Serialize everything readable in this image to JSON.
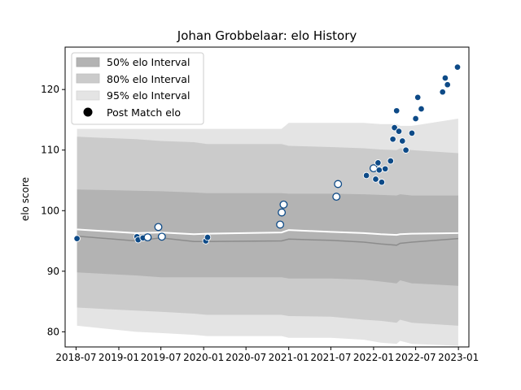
{
  "chart_data": {
    "type": "scatter",
    "title": "Johan Grobbelaar: elo History",
    "xlabel": "",
    "ylabel": "elo score",
    "xlim": [
      "2018-05-15",
      "2023-02-15"
    ],
    "ylim": [
      77.5,
      127
    ],
    "x_ticks": [
      "2018-07",
      "2019-01",
      "2019-07",
      "2020-01",
      "2020-07",
      "2021-01",
      "2021-07",
      "2022-01",
      "2022-07",
      "2023-01"
    ],
    "y_ticks": [
      80,
      90,
      100,
      110,
      120
    ],
    "grid": false,
    "legend": {
      "position": "top-left",
      "entries": [
        "50% elo Interval",
        "80% elo Interval",
        "95% elo Interval",
        "Post Match elo"
      ]
    },
    "colors": {
      "band_50": "#b3b3b3",
      "band_80": "#cbcbcb",
      "band_95": "#e4e4e4",
      "median_line": "#8c8c8c",
      "mean_line": "#ffffff",
      "point_fill": "#0d4a87",
      "point_hollow": "#ffffff",
      "point_edge": "#0d4a87"
    },
    "interval_dates": [
      "2018-07-05",
      "2019-03-15",
      "2019-07-01",
      "2019-11-20",
      "2020-01-15",
      "2020-12-01",
      "2021-01-01",
      "2021-07-01",
      "2021-11-20",
      "2022-02-01",
      "2022-04-10",
      "2022-04-25",
      "2022-06-15",
      "2022-12-31"
    ],
    "band_95": {
      "low": [
        81.0,
        80.0,
        79.8,
        79.5,
        79.3,
        79.3,
        79.0,
        79.0,
        78.7,
        78.2,
        78.0,
        78.5,
        78.0,
        77.7
      ],
      "high": [
        113.5,
        113.5,
        113.5,
        113.5,
        113.5,
        113.5,
        114.5,
        114.5,
        114.5,
        114.3,
        114.3,
        114.0,
        114.0,
        115.2
      ]
    },
    "band_80": {
      "low": [
        84.0,
        83.5,
        83.3,
        83.0,
        82.8,
        82.8,
        82.6,
        82.5,
        82.0,
        81.8,
        81.5,
        82.0,
        81.5,
        81.0
      ]
    },
    "band_80_high": [
      112.2,
      111.8,
      111.5,
      111.3,
      111.0,
      111.0,
      110.7,
      110.5,
      110.3,
      110.1,
      110.0,
      110.3,
      110.0,
      109.5
    ],
    "band_50_low": [
      89.8,
      89.3,
      89.0,
      89.0,
      89.0,
      89.0,
      88.8,
      88.8,
      88.6,
      88.3,
      88.0,
      88.5,
      88.0,
      87.6
    ],
    "band_50_high": [
      103.5,
      103.3,
      103.2,
      103.0,
      102.9,
      102.9,
      102.8,
      102.8,
      102.7,
      102.6,
      102.5,
      102.7,
      102.5,
      102.5
    ],
    "median_line": [
      95.8,
      95.0,
      95.5,
      94.9,
      94.9,
      95.0,
      95.3,
      95.1,
      94.8,
      94.5,
      94.3,
      94.6,
      94.8,
      95.4
    ],
    "mean_line": [
      96.9,
      96.3,
      96.4,
      96.1,
      96.2,
      96.4,
      96.8,
      96.5,
      96.3,
      96.1,
      96.0,
      96.1,
      96.2,
      96.3
    ],
    "points": [
      {
        "x": "2018-07-05",
        "y": 95.4,
        "hollow": false
      },
      {
        "x": "2019-03-20",
        "y": 95.7,
        "hollow": false
      },
      {
        "x": "2019-03-25",
        "y": 95.2,
        "hollow": false
      },
      {
        "x": "2019-04-15",
        "y": 95.5,
        "hollow": false
      },
      {
        "x": "2019-05-05",
        "y": 95.6,
        "hollow": true
      },
      {
        "x": "2019-06-20",
        "y": 97.3,
        "hollow": true
      },
      {
        "x": "2019-07-05",
        "y": 95.7,
        "hollow": true
      },
      {
        "x": "2020-01-10",
        "y": 95.0,
        "hollow": false
      },
      {
        "x": "2020-01-18",
        "y": 95.6,
        "hollow": false
      },
      {
        "x": "2020-11-25",
        "y": 97.7,
        "hollow": true
      },
      {
        "x": "2020-12-02",
        "y": 99.7,
        "hollow": true
      },
      {
        "x": "2020-12-10",
        "y": 101.0,
        "hollow": true
      },
      {
        "x": "2021-07-25",
        "y": 102.3,
        "hollow": true
      },
      {
        "x": "2021-08-01",
        "y": 104.4,
        "hollow": true
      },
      {
        "x": "2021-12-01",
        "y": 105.8,
        "hollow": false
      },
      {
        "x": "2022-01-01",
        "y": 107.0,
        "hollow": true
      },
      {
        "x": "2022-01-10",
        "y": 105.2,
        "hollow": false
      },
      {
        "x": "2022-01-20",
        "y": 107.9,
        "hollow": false
      },
      {
        "x": "2022-01-25",
        "y": 106.7,
        "hollow": false
      },
      {
        "x": "2022-02-05",
        "y": 104.7,
        "hollow": false
      },
      {
        "x": "2022-02-20",
        "y": 106.9,
        "hollow": false
      },
      {
        "x": "2022-03-15",
        "y": 108.2,
        "hollow": false
      },
      {
        "x": "2022-03-25",
        "y": 111.8,
        "hollow": false
      },
      {
        "x": "2022-04-01",
        "y": 113.7,
        "hollow": false
      },
      {
        "x": "2022-04-10",
        "y": 116.5,
        "hollow": false
      },
      {
        "x": "2022-04-20",
        "y": 113.1,
        "hollow": false
      },
      {
        "x": "2022-05-05",
        "y": 111.5,
        "hollow": false
      },
      {
        "x": "2022-05-20",
        "y": 110.0,
        "hollow": false
      },
      {
        "x": "2022-06-15",
        "y": 112.8,
        "hollow": false
      },
      {
        "x": "2022-07-01",
        "y": 115.2,
        "hollow": false
      },
      {
        "x": "2022-07-10",
        "y": 118.7,
        "hollow": false
      },
      {
        "x": "2022-07-25",
        "y": 116.8,
        "hollow": false
      },
      {
        "x": "2022-10-25",
        "y": 119.6,
        "hollow": false
      },
      {
        "x": "2022-11-05",
        "y": 121.9,
        "hollow": false
      },
      {
        "x": "2022-11-15",
        "y": 120.8,
        "hollow": false
      },
      {
        "x": "2022-12-28",
        "y": 123.7,
        "hollow": false
      }
    ]
  }
}
